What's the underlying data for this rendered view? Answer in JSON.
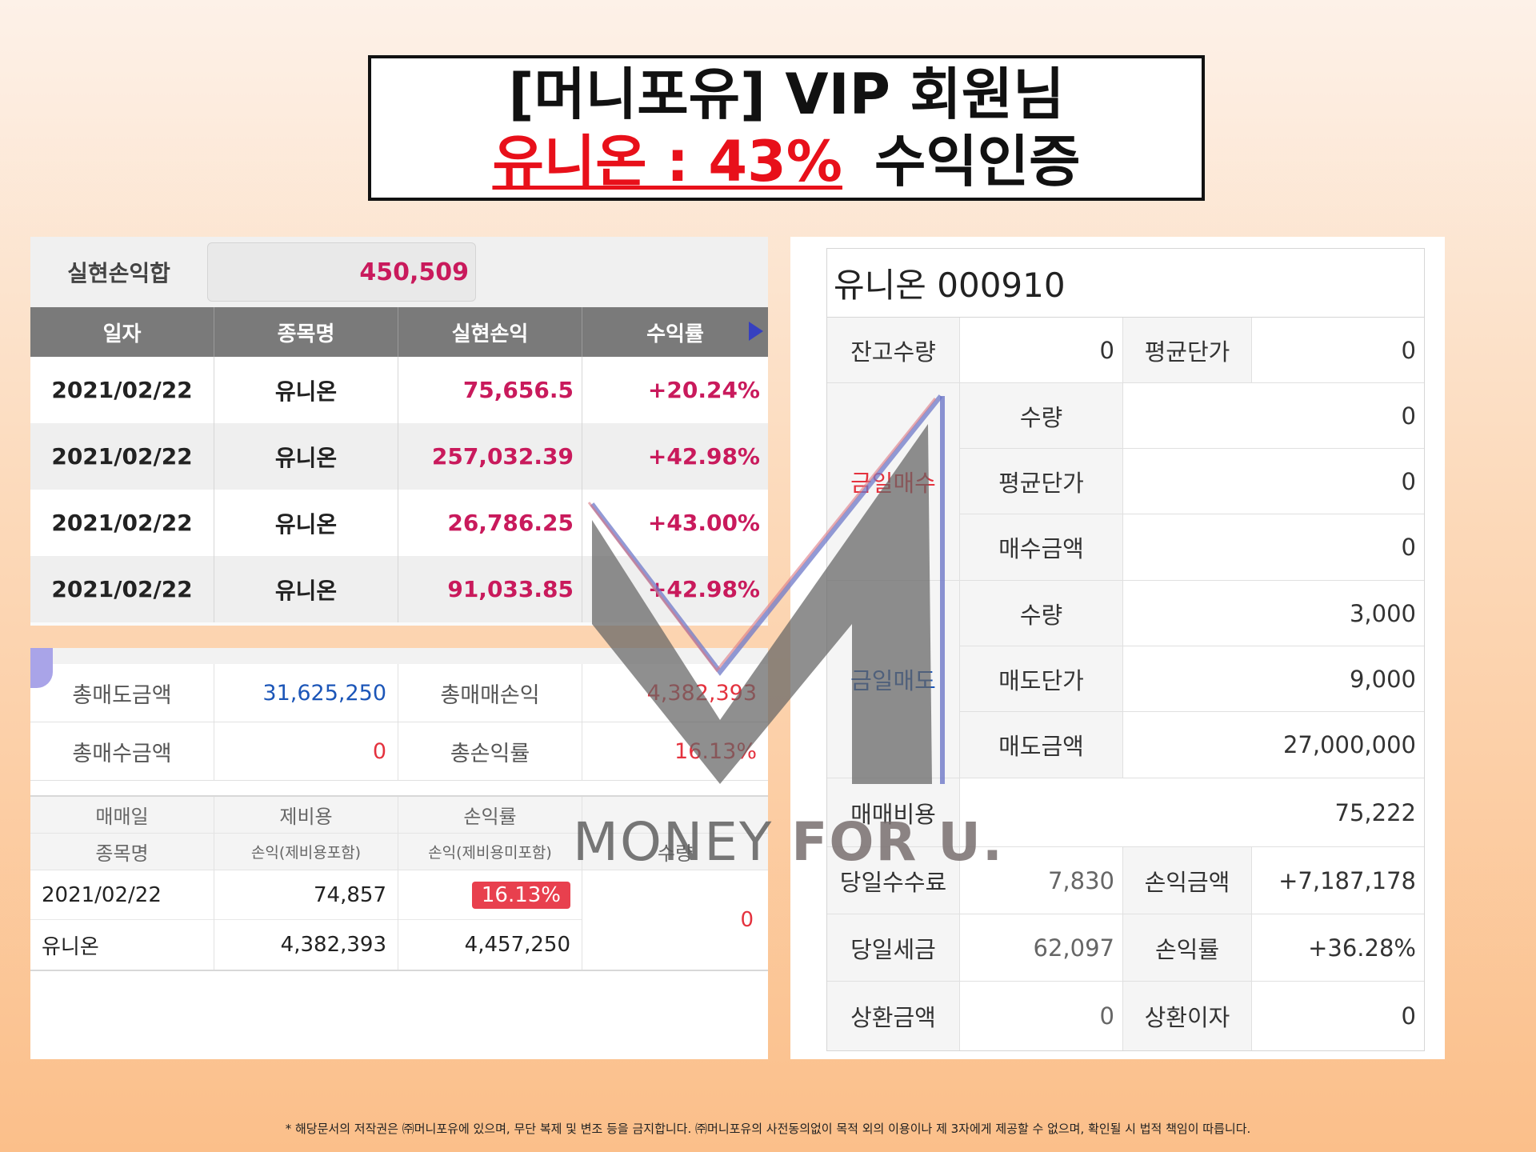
{
  "title": {
    "line1": "[머니포유] VIP 회원님",
    "line2_highlight": "유니온 : 43%",
    "line2_rest": "수익인증"
  },
  "realized": {
    "sum_label": "실현손익합",
    "sum_value": "450,509",
    "headers": [
      "일자",
      "종목명",
      "실현손익",
      "수익률"
    ],
    "rows": [
      {
        "date": "2021/02/22",
        "name": "유니온",
        "pnl": "75,656.5",
        "rate": "+20.24%"
      },
      {
        "date": "2021/02/22",
        "name": "유니온",
        "pnl": "257,032.39",
        "rate": "+42.98%"
      },
      {
        "date": "2021/02/22",
        "name": "유니온",
        "pnl": "26,786.25",
        "rate": "+43.00%"
      },
      {
        "date": "2021/02/22",
        "name": "유니온",
        "pnl": "91,033.85",
        "rate": "+42.98%"
      }
    ]
  },
  "summary": {
    "total_sell_label": "총매도금액",
    "total_sell_value": "31,625,250",
    "total_trade_pnl_label": "총매매손익",
    "total_trade_pnl_value": "4,382,393",
    "total_buy_label": "총매수금액",
    "total_buy_value": "0",
    "total_rate_label": "총손익률",
    "total_rate_value": "16.13%"
  },
  "detail": {
    "h_trade_date": "매매일",
    "h_fees": "제비용",
    "h_pnl_rate": "손익률",
    "h_name": "종목명",
    "h_pnl_incl": "손익(제비용포함)",
    "h_pnl_excl": "손익(제비용미포함)",
    "h_qty": "수량",
    "trade_date": "2021/02/22",
    "fees": "74,857",
    "pnl_rate": "16.13%",
    "name": "유니온",
    "pnl_incl": "4,382,393",
    "pnl_excl": "4,457,250",
    "qty": "0"
  },
  "stock": {
    "title": "유니온 000910",
    "balance_qty_label": "잔고수량",
    "balance_qty": "0",
    "avg_price_label": "평균단가",
    "avg_price": "0",
    "buy_label": "금일매수",
    "buy_qty_label": "수량",
    "buy_qty": "0",
    "buy_avg_label": "평균단가",
    "buy_avg": "0",
    "buy_amount_label": "매수금액",
    "buy_amount": "0",
    "sell_label": "금일매도",
    "sell_qty_label": "수량",
    "sell_qty": "3,000",
    "sell_price_label": "매도단가",
    "sell_price": "9,000",
    "sell_amount_label": "매도금액",
    "sell_amount": "27,000,000",
    "trade_cost_label": "매매비용",
    "trade_cost": "75,222",
    "day_fee_label": "당일수수료",
    "day_fee": "7,830",
    "pnl_amount_label": "손익금액",
    "pnl_amount": "+7,187,178",
    "day_tax_label": "당일세금",
    "day_tax": "62,097",
    "pnl_rate_label": "손익률",
    "pnl_rate": "+36.28%",
    "repay_amount_label": "상환금액",
    "repay_amount": "0",
    "repay_interest_label": "상환이자",
    "repay_interest": "0"
  },
  "watermark": {
    "text_light": "MONEY ",
    "text_bold": "FOR U."
  },
  "footer": "* 해당문서의 저작권은 ㈜머니포유에 있으며, 무단 복제 및 변조 등을 금지합니다. ㈜머니포유의 사전동의없이 목적 외의 이용이나 제 3자에게 제공할 수 없으며, 확인될 시 법적 책임이 따릅니다."
}
